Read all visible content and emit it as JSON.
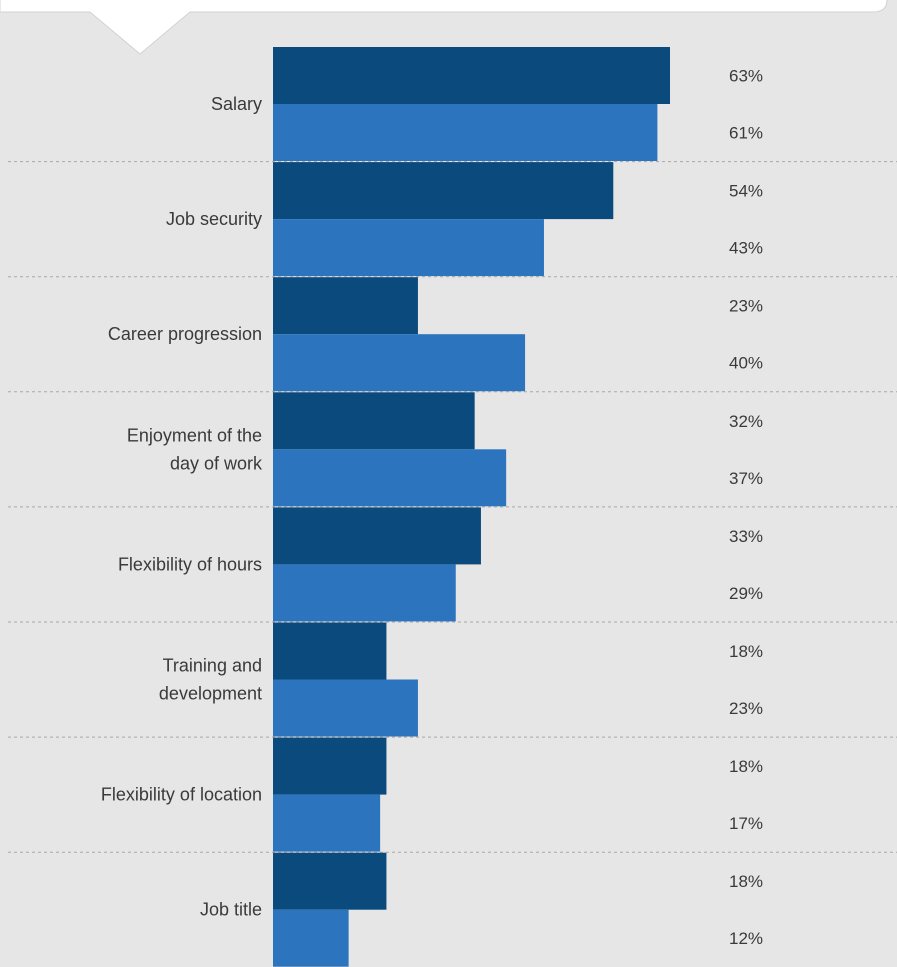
{
  "colors": {
    "background": "#e6e6e6",
    "callout": "#ffffff",
    "series_dark": "#0b4a7c",
    "series_light": "#2c74bd",
    "separator": "#a8a8a8",
    "text": "#3a3a3a"
  },
  "chart_data": {
    "type": "bar",
    "orientation": "horizontal",
    "title": "",
    "xlabel": "",
    "ylabel": "",
    "xlim": [
      0,
      63
    ],
    "grid": false,
    "legend": "none",
    "categories": [
      "Salary",
      "Job security",
      "Career progression",
      "Enjoyment of the day of work",
      "Flexibility of hours",
      "Training and development",
      "Flexibility of location",
      "Job title"
    ],
    "category_label_lines": [
      [
        "Salary"
      ],
      [
        "Job security"
      ],
      [
        "Career progression"
      ],
      [
        "Enjoyment of the",
        "day of work"
      ],
      [
        "Flexibility of hours"
      ],
      [
        "Training and",
        "development"
      ],
      [
        "Flexibility of location"
      ],
      [
        "Job title"
      ]
    ],
    "series": [
      {
        "values": [
          63,
          54,
          23,
          32,
          33,
          18,
          18,
          18
        ],
        "labels": [
          "63%",
          "54%",
          "23%",
          "32%",
          "33%",
          "18%",
          "18%",
          "18%"
        ],
        "color": "#0b4a7c"
      },
      {
        "values": [
          61,
          43,
          40,
          37,
          29,
          23,
          17,
          12
        ],
        "labels": [
          "61%",
          "43%",
          "40%",
          "37%",
          "29%",
          "23%",
          "17%",
          "12%"
        ],
        "color": "#2c74bd"
      }
    ]
  }
}
